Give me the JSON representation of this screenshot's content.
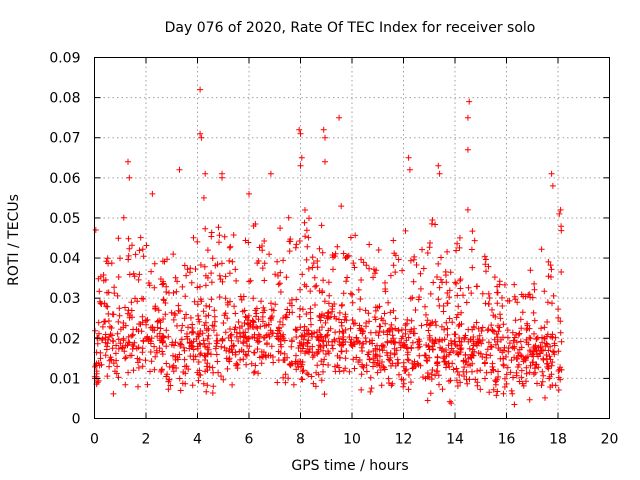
{
  "chart_data": {
    "type": "scatter",
    "title": "Day 076 of 2020, Rate Of TEC Index for receiver solo",
    "xlabel": "GPS time / hours",
    "ylabel": "ROTI / TECUs",
    "xlim": [
      0,
      20
    ],
    "ylim": [
      0,
      0.09
    ],
    "x_ticks": [
      0,
      2,
      4,
      6,
      8,
      10,
      12,
      14,
      16,
      18,
      20
    ],
    "x_tick_labels": [
      "0",
      "2",
      "4",
      "6",
      "8",
      "10",
      "12",
      "14",
      "16",
      "18",
      "20"
    ],
    "y_ticks": [
      0,
      0.01,
      0.02,
      0.03,
      0.04,
      0.05,
      0.06,
      0.07,
      0.08,
      0.09
    ],
    "y_tick_labels": [
      "0",
      "0.01",
      "0.02",
      "0.03",
      "0.04",
      "0.05",
      "0.06",
      "0.07",
      "0.08",
      "0.09"
    ],
    "grid": true,
    "marker": "+",
    "color": "#ff0000",
    "data_extent_hours": [
      0,
      18.15
    ],
    "envelope": {
      "hour": [
        0,
        0.5,
        1,
        1.5,
        2,
        2.5,
        3,
        3.5,
        4,
        4.5,
        5,
        5.5,
        6,
        6.5,
        7,
        7.5,
        8,
        8.5,
        9,
        9.5,
        10,
        10.5,
        11,
        11.5,
        12,
        12.5,
        13,
        13.5,
        14,
        14.5,
        15,
        15.5,
        16,
        16.5,
        17,
        17.5,
        18
      ],
      "median": [
        0.016,
        0.017,
        0.018,
        0.018,
        0.019,
        0.018,
        0.017,
        0.016,
        0.016,
        0.017,
        0.018,
        0.019,
        0.02,
        0.02,
        0.019,
        0.018,
        0.017,
        0.016,
        0.018,
        0.019,
        0.018,
        0.017,
        0.016,
        0.016,
        0.017,
        0.017,
        0.016,
        0.015,
        0.015,
        0.016,
        0.016,
        0.015,
        0.014,
        0.015,
        0.015,
        0.014,
        0.015
      ],
      "upper": [
        0.04,
        0.042,
        0.05,
        0.048,
        0.052,
        0.045,
        0.042,
        0.041,
        0.05,
        0.048,
        0.047,
        0.046,
        0.048,
        0.05,
        0.047,
        0.05,
        0.055,
        0.05,
        0.048,
        0.055,
        0.046,
        0.045,
        0.044,
        0.046,
        0.05,
        0.048,
        0.05,
        0.046,
        0.045,
        0.048,
        0.043,
        0.04,
        0.035,
        0.034,
        0.038,
        0.045,
        0.048
      ]
    },
    "notable_points": [
      {
        "x": 0.05,
        "y": 0.047
      },
      {
        "x": 1.3,
        "y": 0.064
      },
      {
        "x": 1.35,
        "y": 0.06
      },
      {
        "x": 2.25,
        "y": 0.056
      },
      {
        "x": 3.3,
        "y": 0.062
      },
      {
        "x": 4.1,
        "y": 0.082
      },
      {
        "x": 4.1,
        "y": 0.071
      },
      {
        "x": 4.15,
        "y": 0.07
      },
      {
        "x": 4.3,
        "y": 0.061
      },
      {
        "x": 4.25,
        "y": 0.055
      },
      {
        "x": 4.95,
        "y": 0.061
      },
      {
        "x": 4.95,
        "y": 0.06
      },
      {
        "x": 6.0,
        "y": 0.056
      },
      {
        "x": 6.85,
        "y": 0.061
      },
      {
        "x": 7.95,
        "y": 0.072
      },
      {
        "x": 8.0,
        "y": 0.071
      },
      {
        "x": 8.05,
        "y": 0.065
      },
      {
        "x": 8.0,
        "y": 0.063
      },
      {
        "x": 8.9,
        "y": 0.072
      },
      {
        "x": 8.95,
        "y": 0.07
      },
      {
        "x": 8.95,
        "y": 0.064
      },
      {
        "x": 9.5,
        "y": 0.075
      },
      {
        "x": 12.2,
        "y": 0.065
      },
      {
        "x": 12.25,
        "y": 0.062
      },
      {
        "x": 13.35,
        "y": 0.063
      },
      {
        "x": 13.4,
        "y": 0.061
      },
      {
        "x": 14.55,
        "y": 0.079
      },
      {
        "x": 14.5,
        "y": 0.075
      },
      {
        "x": 14.5,
        "y": 0.067
      },
      {
        "x": 14.5,
        "y": 0.052
      },
      {
        "x": 17.75,
        "y": 0.061
      },
      {
        "x": 17.8,
        "y": 0.058
      },
      {
        "x": 18.05,
        "y": 0.051
      },
      {
        "x": 18.1,
        "y": 0.052
      }
    ]
  }
}
